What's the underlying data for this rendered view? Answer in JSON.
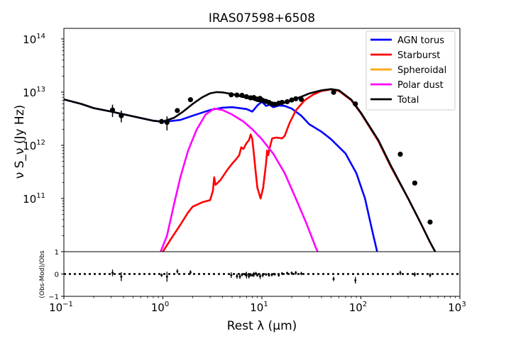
{
  "chart_data": {
    "type": "line",
    "title": "IRAS07598+6508",
    "xlabel": "Rest λ (μm)",
    "ylabel": "ν S_ν (Jy Hz)",
    "residual_ylabel": "(Obs-Mod)/Obs",
    "xscale": "log",
    "yscale": "log",
    "xlim": [
      0.1,
      1000
    ],
    "ylim": [
      10000000000,
      158000000000000
    ],
    "residual_ylim": [
      -1,
      1
    ],
    "legend_position": "upper-right",
    "x_ticks": [
      {
        "value": 0.1,
        "base": "10",
        "exp": "−1"
      },
      {
        "value": 1,
        "base": "10",
        "exp": "0"
      },
      {
        "value": 10,
        "base": "10",
        "exp": "1"
      },
      {
        "value": 100,
        "base": "10",
        "exp": "2"
      },
      {
        "value": 1000,
        "base": "10",
        "exp": "3"
      }
    ],
    "y_ticks": [
      {
        "value": 100000000000,
        "base": "10",
        "exp": "11"
      },
      {
        "value": 1000000000000,
        "base": "10",
        "exp": "12"
      },
      {
        "value": 10000000000000,
        "base": "10",
        "exp": "13"
      },
      {
        "value": 100000000000000,
        "base": "10",
        "exp": "14"
      }
    ],
    "residual_ticks": [
      "1",
      "0",
      "−1"
    ],
    "series": [
      {
        "name": "AGN torus",
        "color": "#0000ff",
        "points": [
          [
            0.1,
            7300000000000.0
          ],
          [
            0.15,
            6000000000000.0
          ],
          [
            0.2,
            5000000000000.0
          ],
          [
            0.3,
            4300000000000.0
          ],
          [
            0.5,
            3500000000000.0
          ],
          [
            0.8,
            2900000000000.0
          ],
          [
            1.0,
            2750000000000.0
          ],
          [
            1.5,
            3000000000000.0
          ],
          [
            2.0,
            3600000000000.0
          ],
          [
            3.0,
            4600000000000.0
          ],
          [
            4.0,
            5100000000000.0
          ],
          [
            5.0,
            5200000000000.0
          ],
          [
            7.0,
            4800000000000.0
          ],
          [
            8.0,
            4300000000000.0
          ],
          [
            9.0,
            5600000000000.0
          ],
          [
            10.0,
            6600000000000.0
          ],
          [
            11.0,
            5500000000000.0
          ],
          [
            12.0,
            5800000000000.0
          ],
          [
            13.0,
            5200000000000.0
          ],
          [
            15.0,
            5600000000000.0
          ],
          [
            17.0,
            5500000000000.0
          ],
          [
            20.0,
            4900000000000.0
          ],
          [
            25.0,
            3600000000000.0
          ],
          [
            30.0,
            2500000000000.0
          ],
          [
            40.0,
            1800000000000.0
          ],
          [
            50.0,
            1300000000000.0
          ],
          [
            70.0,
            700000000000.0
          ],
          [
            90.0,
            300000000000.0
          ],
          [
            110.0,
            100000000000.0
          ],
          [
            130.0,
            25000000000.0
          ],
          [
            150.0,
            8000000000.0
          ]
        ]
      },
      {
        "name": "Starburst",
        "color": "#ff0000",
        "points": [
          [
            0.9,
            8000000000.0
          ],
          [
            1.0,
            10000000000.0
          ],
          [
            1.2,
            17000000000.0
          ],
          [
            1.5,
            32000000000.0
          ],
          [
            1.8,
            55000000000.0
          ],
          [
            2.0,
            70000000000.0
          ],
          [
            2.5,
            85000000000.0
          ],
          [
            3.0,
            93000000000.0
          ],
          [
            3.2,
            140000000000.0
          ],
          [
            3.3,
            250000000000.0
          ],
          [
            3.4,
            180000000000.0
          ],
          [
            3.8,
            220000000000.0
          ],
          [
            4.5,
            350000000000.0
          ],
          [
            5.0,
            450000000000.0
          ],
          [
            5.5,
            550000000000.0
          ],
          [
            5.9,
            650000000000.0
          ],
          [
            6.2,
            920000000000.0
          ],
          [
            6.5,
            850000000000.0
          ],
          [
            7.0,
            1100000000000.0
          ],
          [
            7.4,
            1250000000000.0
          ],
          [
            7.7,
            1600000000000.0
          ],
          [
            8.0,
            1300000000000.0
          ],
          [
            8.3,
            700000000000.0
          ],
          [
            8.6,
            350000000000.0
          ],
          [
            9.0,
            160000000000.0
          ],
          [
            9.7,
            100000000000.0
          ],
          [
            10.3,
            160000000000.0
          ],
          [
            11.0,
            450000000000.0
          ],
          [
            11.3,
            800000000000.0
          ],
          [
            11.6,
            650000000000.0
          ],
          [
            12.0,
            900000000000.0
          ],
          [
            12.7,
            1350000000000.0
          ],
          [
            14.0,
            1400000000000.0
          ],
          [
            16.0,
            1350000000000.0
          ],
          [
            17.0,
            1500000000000.0
          ],
          [
            19.0,
            2600000000000.0
          ],
          [
            22.0,
            4500000000000.0
          ],
          [
            27.0,
            7000000000000.0
          ],
          [
            33.0,
            9000000000000.0
          ],
          [
            40.0,
            10500000000000.0
          ],
          [
            50.0,
            11200000000000.0
          ],
          [
            60.0,
            10500000000000.0
          ],
          [
            80.0,
            7000000000000.0
          ],
          [
            100.0,
            4000000000000.0
          ],
          [
            150.0,
            1200000000000.0
          ],
          [
            200.0,
            400000000000.0
          ],
          [
            300.0,
            100000000000.0
          ],
          [
            400.0,
            35000000000.0
          ],
          [
            500.0,
            15000000000.0
          ],
          [
            600.0,
            8000000000.0
          ]
        ]
      },
      {
        "name": "Spheroidal",
        "color": "#ffa500",
        "points": []
      },
      {
        "name": "Polar dust",
        "color": "#ff00ff",
        "points": [
          [
            0.95,
            10000000000.0
          ],
          [
            1.1,
            20000000000.0
          ],
          [
            1.3,
            80000000000.0
          ],
          [
            1.5,
            250000000000.0
          ],
          [
            1.8,
            800000000000.0
          ],
          [
            2.2,
            2000000000000.0
          ],
          [
            2.7,
            3800000000000.0
          ],
          [
            3.3,
            4900000000000.0
          ],
          [
            4.0,
            4600000000000.0
          ],
          [
            5.0,
            3800000000000.0
          ],
          [
            6.5,
            2800000000000.0
          ],
          [
            8.0,
            2000000000000.0
          ],
          [
            10.0,
            1300000000000.0
          ],
          [
            13.0,
            700000000000.0
          ],
          [
            17.0,
            300000000000.0
          ],
          [
            22.0,
            100000000000.0
          ],
          [
            28.0,
            35000000000.0
          ],
          [
            35.0,
            12000000000.0
          ],
          [
            40.0,
            7000000000.0
          ]
        ]
      },
      {
        "name": "Total",
        "color": "#000000",
        "points": [
          [
            0.1,
            7300000000000.0
          ],
          [
            0.15,
            6000000000000.0
          ],
          [
            0.2,
            5000000000000.0
          ],
          [
            0.3,
            4300000000000.0
          ],
          [
            0.5,
            3500000000000.0
          ],
          [
            0.8,
            2900000000000.0
          ],
          [
            1.0,
            2800000000000.0
          ],
          [
            1.3,
            3300000000000.0
          ],
          [
            1.6,
            4300000000000.0
          ],
          [
            2.0,
            6000000000000.0
          ],
          [
            2.5,
            8000000000000.0
          ],
          [
            3.0,
            9500000000000.0
          ],
          [
            3.5,
            10000000000000.0
          ],
          [
            4.0,
            9900000000000.0
          ],
          [
            5.0,
            9200000000000.0
          ],
          [
            6.0,
            8400000000000.0
          ],
          [
            7.0,
            7800000000000.0
          ],
          [
            8.0,
            7400000000000.0
          ],
          [
            9.0,
            6800000000000.0
          ],
          [
            10.0,
            6600000000000.0
          ],
          [
            12.0,
            6200000000000.0
          ],
          [
            14.0,
            6000000000000.0
          ],
          [
            17.0,
            6300000000000.0
          ],
          [
            20.0,
            7000000000000.0
          ],
          [
            25.0,
            8200000000000.0
          ],
          [
            30.0,
            9400000000000.0
          ],
          [
            40.0,
            10800000000000.0
          ],
          [
            50.0,
            11400000000000.0
          ],
          [
            60.0,
            10800000000000.0
          ],
          [
            80.0,
            7200000000000.0
          ],
          [
            100.0,
            4100000000000.0
          ],
          [
            150.0,
            1250000000000.0
          ],
          [
            200.0,
            420000000000.0
          ],
          [
            300.0,
            100000000000.0
          ],
          [
            400.0,
            35000000000.0
          ],
          [
            500.0,
            15000000000.0
          ],
          [
            600.0,
            8000000000.0
          ]
        ]
      }
    ],
    "observed": [
      [
        0.31,
        4600000000000.0,
        1200000000000.0
      ],
      [
        0.38,
        3600000000000.0,
        900000000000.0
      ],
      [
        0.97,
        2800000000000.0,
        0
      ],
      [
        1.1,
        2700000000000.0,
        800000000000.0
      ],
      [
        1.4,
        4500000000000.0,
        0
      ],
      [
        1.9,
        7200000000000.0,
        0
      ],
      [
        4.9,
        8900000000000.0,
        0
      ],
      [
        5.6,
        8800000000000.0,
        0
      ],
      [
        6.3,
        8700000000000.0,
        0
      ],
      [
        7.0,
        8200000000000.0,
        0
      ],
      [
        7.7,
        7800000000000.0,
        0
      ],
      [
        8.3,
        7900000000000.0,
        0
      ],
      [
        9.0,
        7400000000000.0,
        0
      ],
      [
        9.6,
        7600000000000.0,
        0
      ],
      [
        10.2,
        7000000000000.0,
        0
      ],
      [
        11.0,
        6700000000000.0,
        0
      ],
      [
        11.8,
        6400000000000.0,
        0
      ],
      [
        12.6,
        6000000000000.0,
        0
      ],
      [
        13.5,
        5900000000000.0,
        0
      ],
      [
        14.8,
        6200000000000.0,
        0
      ],
      [
        16.0,
        6400000000000.0,
        0
      ],
      [
        18.0,
        6600000000000.0,
        0
      ],
      [
        20.0,
        7100000000000.0,
        0
      ],
      [
        22.0,
        7500000000000.0,
        0
      ],
      [
        25.0,
        7300000000000.0,
        0
      ],
      [
        53.0,
        9900000000000.0,
        0
      ],
      [
        88.0,
        6000000000000.0,
        0
      ],
      [
        250.0,
        680000000000.0,
        0
      ],
      [
        350.0,
        195000000000.0,
        0
      ],
      [
        500.0,
        36000000000.0,
        0
      ]
    ],
    "residuals": [
      [
        0.31,
        0.05,
        0.3
      ],
      [
        0.38,
        -0.12,
        0.4
      ],
      [
        0.97,
        -0.05,
        0.15
      ],
      [
        1.1,
        -0.12,
        0.45
      ],
      [
        1.4,
        0.12,
        0.2
      ],
      [
        1.9,
        0.08,
        0.18
      ],
      [
        4.9,
        -0.05,
        0.25
      ],
      [
        5.6,
        -0.1,
        0.22
      ],
      [
        6.0,
        -0.12,
        0.2
      ],
      [
        6.3,
        -0.03,
        0.15
      ],
      [
        6.8,
        -0.02,
        0.15
      ],
      [
        7.0,
        -0.05,
        0.3
      ],
      [
        7.4,
        -0.1,
        0.2
      ],
      [
        7.7,
        -0.03,
        0.15
      ],
      [
        8.0,
        -0.06,
        0.12
      ],
      [
        8.3,
        -0.02,
        0.22
      ],
      [
        8.7,
        0.02,
        0.15
      ],
      [
        9.0,
        -0.06,
        0.12
      ],
      [
        9.6,
        -0.1,
        0.25
      ],
      [
        10.2,
        -0.05,
        0.18
      ],
      [
        11.0,
        -0.02,
        0.12
      ],
      [
        11.8,
        -0.05,
        0.15
      ],
      [
        12.6,
        -0.03,
        0.15
      ],
      [
        13.5,
        -0.01,
        0.12
      ],
      [
        14.8,
        -0.05,
        0.15
      ],
      [
        16.0,
        0.02,
        0.12
      ],
      [
        18.0,
        0.04,
        0.12
      ],
      [
        20.0,
        0.04,
        0.15
      ],
      [
        22.0,
        0.05,
        0.18
      ],
      [
        25.0,
        0.02,
        0.15
      ],
      [
        53.0,
        -0.22,
        0.2
      ],
      [
        88.0,
        -0.28,
        0.3
      ],
      [
        250.0,
        0.05,
        0.2
      ],
      [
        350.0,
        -0.02,
        0.2
      ],
      [
        500.0,
        -0.05,
        0.2
      ]
    ]
  }
}
